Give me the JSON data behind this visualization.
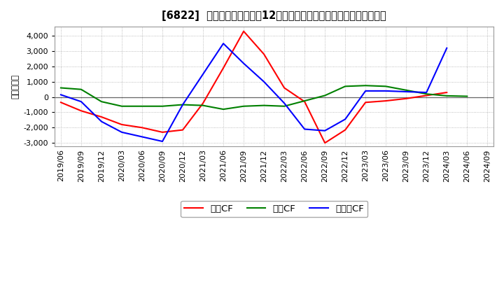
{
  "title": "[6822]  キャッシュフローの12か月移動合計の対前年同期増減額の推移",
  "ylabel": "（百万円）",
  "background_color": "#ffffff",
  "plot_bg_color": "#ffffff",
  "grid_color": "#aaaaaa",
  "ylim": [
    -3200,
    4600
  ],
  "yticks": [
    -3000,
    -2000,
    -1000,
    0,
    1000,
    2000,
    3000,
    4000
  ],
  "dates": [
    "2019/06",
    "2019/09",
    "2019/12",
    "2020/03",
    "2020/06",
    "2020/09",
    "2020/12",
    "2021/03",
    "2021/06",
    "2021/09",
    "2021/12",
    "2022/03",
    "2022/06",
    "2022/09",
    "2022/12",
    "2023/03",
    "2023/06",
    "2023/09",
    "2023/12",
    "2024/03",
    "2024/06",
    "2024/09"
  ],
  "eigyo_cf": [
    -350,
    -900,
    -1300,
    -1800,
    -2000,
    -2300,
    -2150,
    -400,
    1900,
    4300,
    2800,
    600,
    -300,
    -3000,
    -2150,
    -350,
    -250,
    -100,
    100,
    300,
    null,
    null
  ],
  "toshi_cf": [
    600,
    500,
    -300,
    -600,
    -600,
    -600,
    -500,
    -550,
    -800,
    -600,
    -550,
    -600,
    -250,
    100,
    700,
    750,
    700,
    450,
    200,
    80,
    50,
    null
  ],
  "free_cf": [
    150,
    -300,
    -1600,
    -2300,
    -2600,
    -2900,
    -500,
    1500,
    3500,
    2200,
    1000,
    -400,
    -2100,
    -2200,
    -1450,
    400,
    400,
    350,
    300,
    3200,
    null,
    null
  ],
  "line_colors": {
    "eigyo": "#ff0000",
    "toshi": "#008000",
    "free": "#0000ff"
  },
  "legend_labels": {
    "eigyo": "営業CF",
    "toshi": "投資CF",
    "free": "フリーCF"
  }
}
